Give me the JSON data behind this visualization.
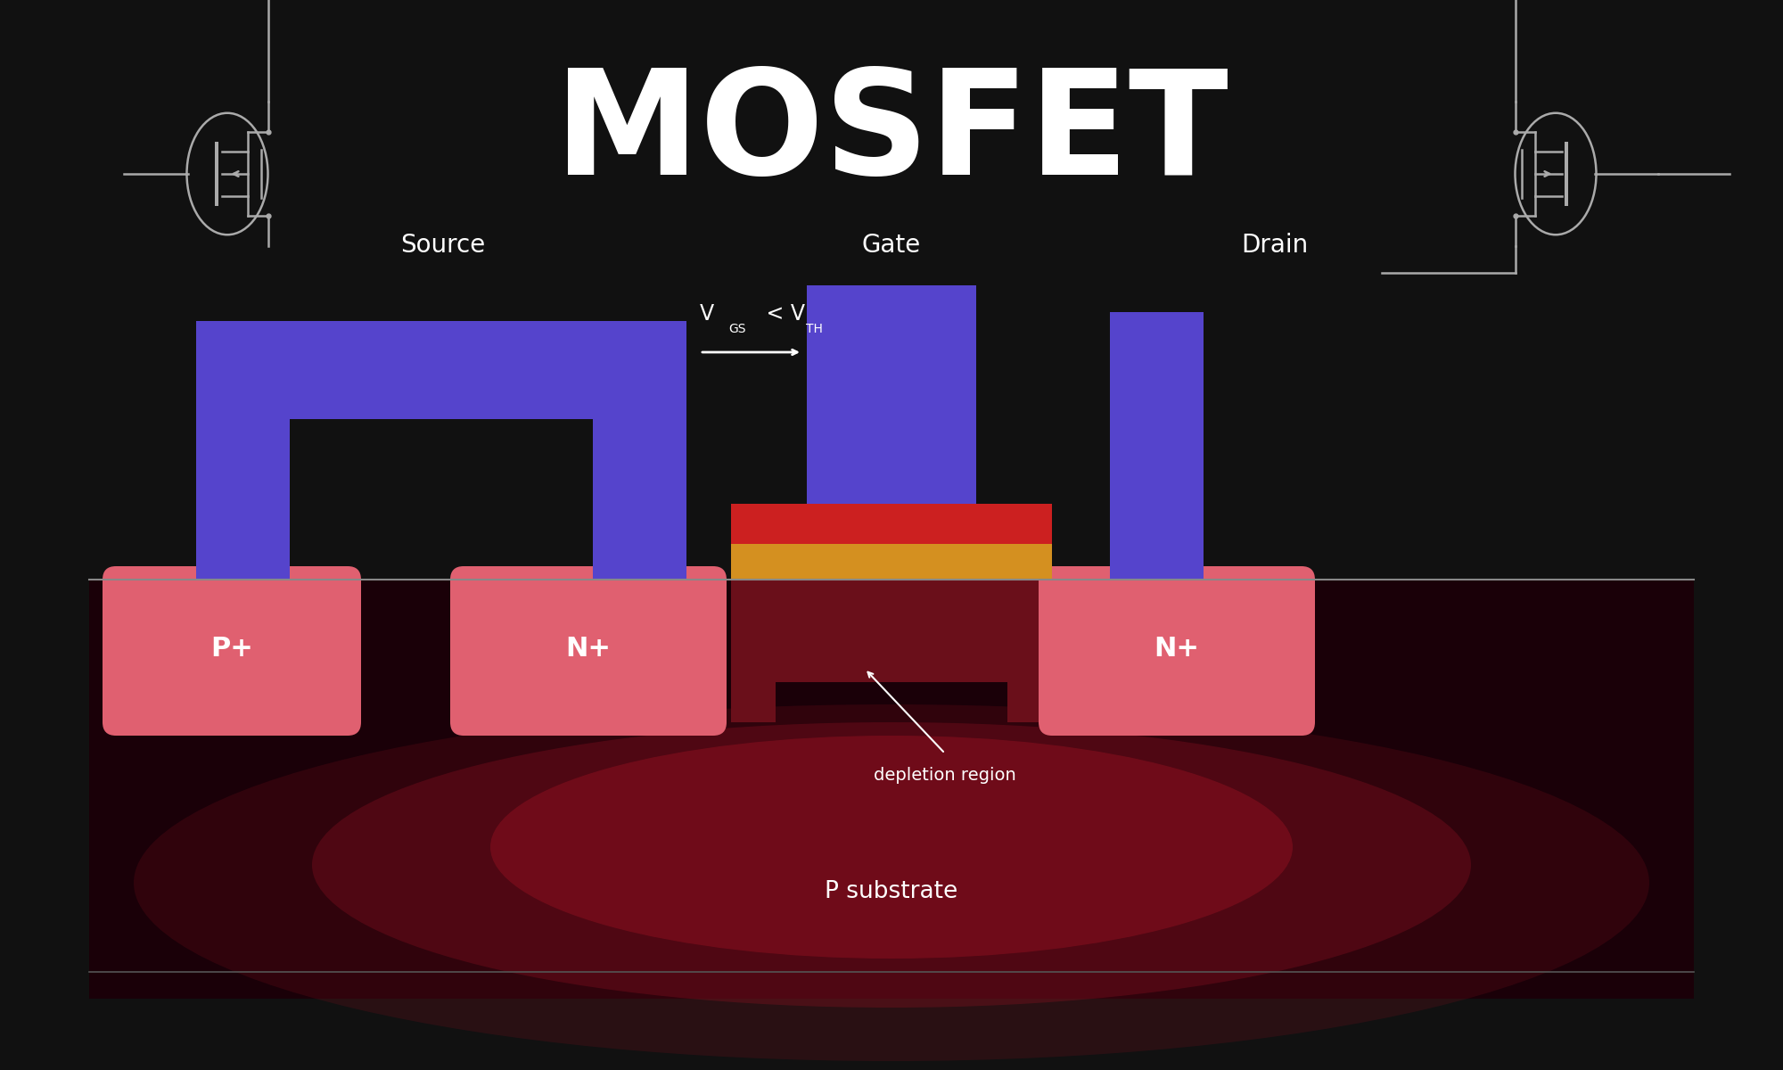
{
  "bg_color": "#111111",
  "title": "MOSFET",
  "blue_metal": "#5544cc",
  "pink_light": "#e06070",
  "dark_substrate": "#1a0008",
  "red_glow1": "#8b1020",
  "red_glow2": "#5a0a18",
  "depletion_color": "#6a0f1a",
  "red_gate": "#cc2020",
  "yellow_oxide": "#d49020",
  "gray_sym": "#aaaaaa",
  "white": "#ffffff",
  "surface_line": "#888888",
  "source_label": "Source",
  "gate_label": "Gate",
  "drain_label": "Drain",
  "p_plus_label": "P+",
  "n_plus_label": "N+",
  "depletion_label": "depletion region",
  "substrate_label": "P substrate"
}
